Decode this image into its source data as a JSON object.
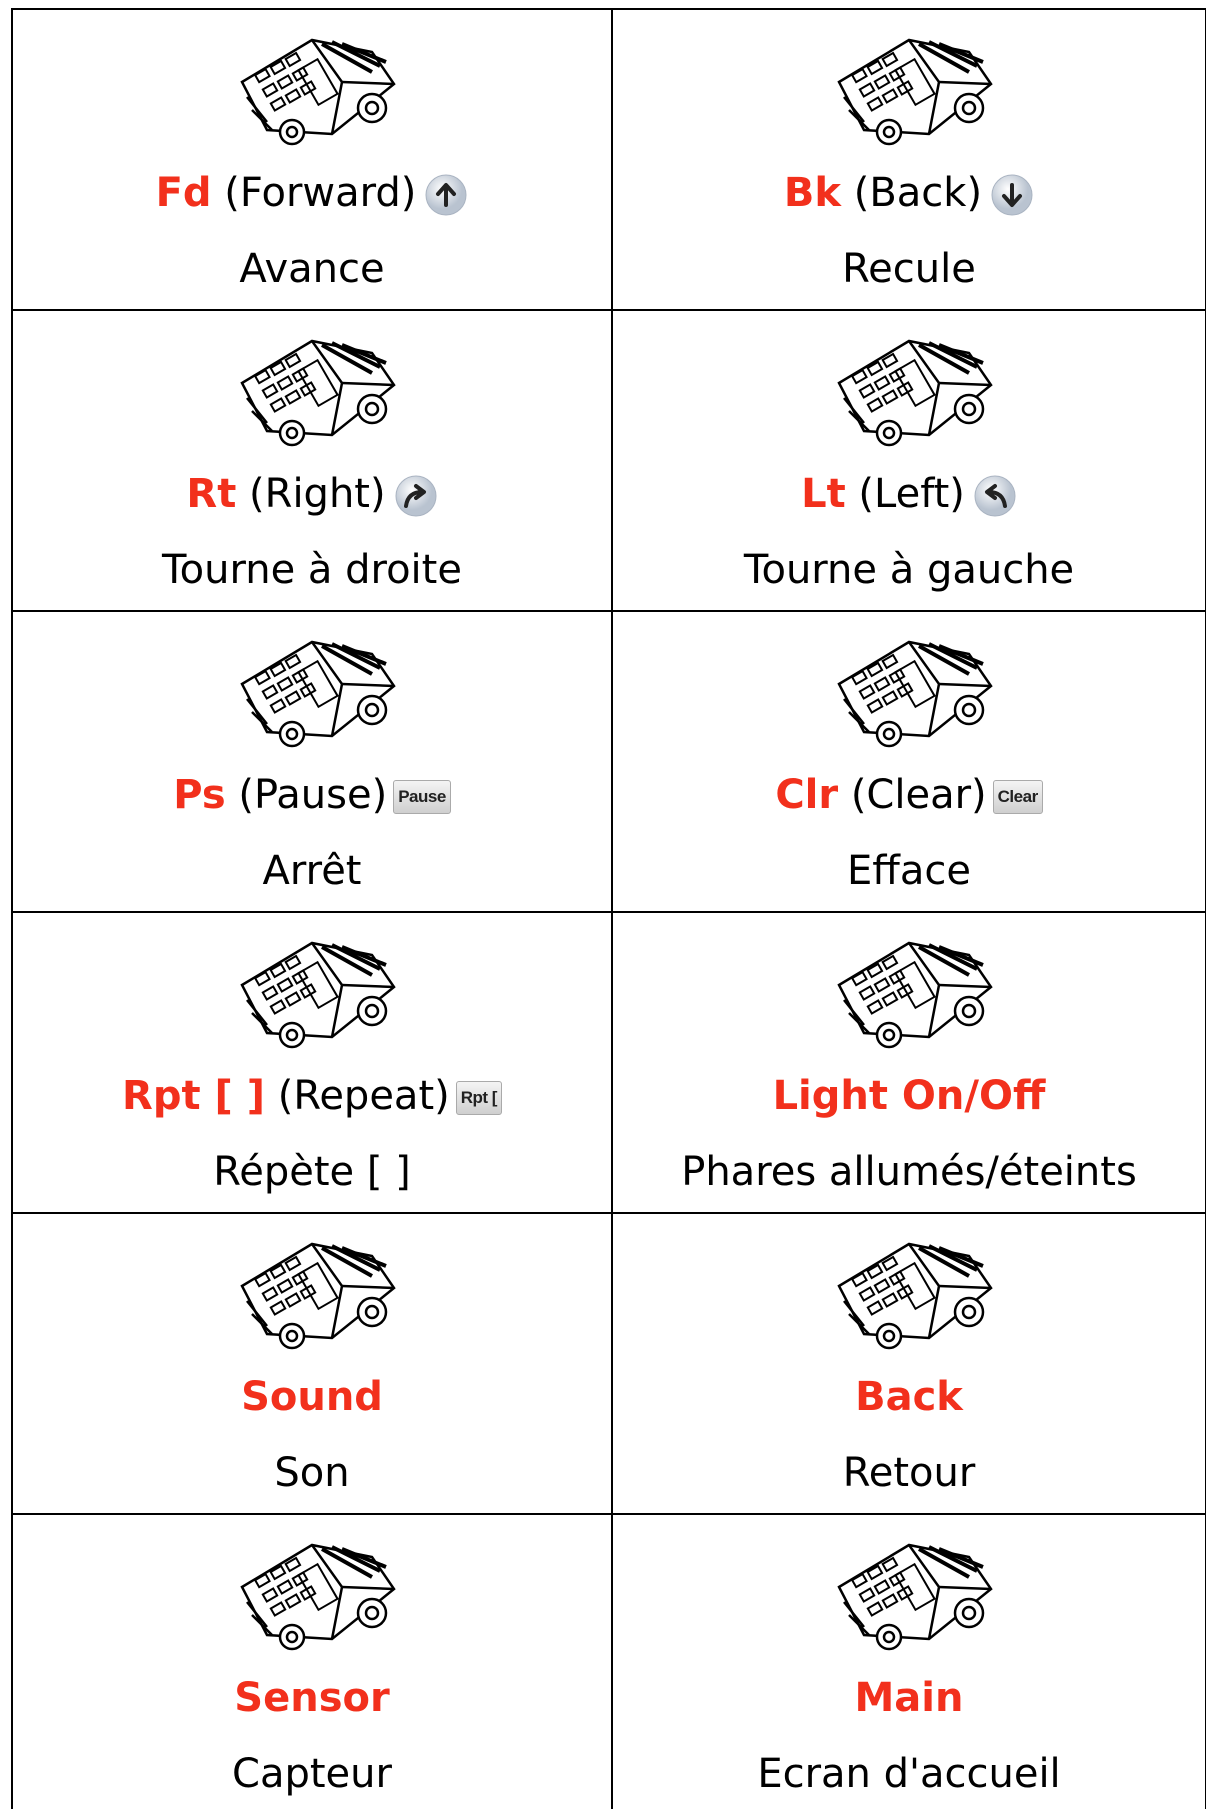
{
  "table": {
    "rows": [
      [
        {
          "command": "Fd",
          "name": "(Forward)",
          "description": "Avance"
        },
        {
          "command": "Bk",
          "name": "(Back)",
          "description": "Recule"
        }
      ],
      [
        {
          "command": "Rt",
          "name": "(Right)",
          "description": "Tourne à droite"
        },
        {
          "command": "Lt",
          "name": "(Left)",
          "description": "Tourne à gauche"
        }
      ],
      [
        {
          "command": "Ps",
          "name": "(Pause)",
          "button": "Pause",
          "description": "Arrêt"
        },
        {
          "command": "Clr",
          "name": "(Clear)",
          "button": "Clear",
          "description": "Efface"
        }
      ],
      [
        {
          "command": "Rpt [ ]",
          "name": "(Repeat)",
          "button": "Rpt [",
          "description": "Répète [ ]"
        },
        {
          "command": "Light On/Off",
          "description": "Phares allumés/éteints"
        }
      ],
      [
        {
          "command": "Sound",
          "description": "Son"
        },
        {
          "command": "Back",
          "description": "Retour"
        }
      ],
      [
        {
          "command": "Sensor",
          "description": "Capteur"
        },
        {
          "command": "Main",
          "description": "Ecran d'accueil"
        }
      ]
    ]
  }
}
